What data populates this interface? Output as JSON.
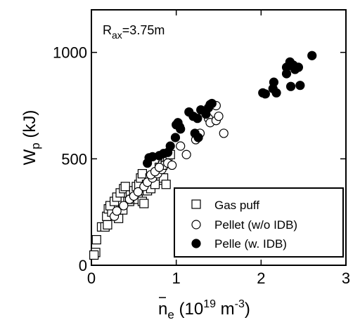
{
  "chart_data": {
    "type": "scatter",
    "annotation": {
      "main": "R",
      "sub": "ax",
      "rest": "=3.75m"
    },
    "xlabel": {
      "bar_symbol": "n",
      "sub": "e",
      "unit_open": " (10",
      "sup1": "19",
      "unit_mid": " m",
      "sup2": "-3",
      "unit_close": ")"
    },
    "ylabel": {
      "main": "W",
      "sub": "p",
      "rest": " (kJ)"
    },
    "xlim": [
      0,
      3
    ],
    "ylim": [
      0,
      1200
    ],
    "x_ticks": [
      0,
      1,
      2,
      3
    ],
    "x_tick_labels": [
      "0",
      "1",
      "2",
      "3"
    ],
    "y_ticks": [
      0,
      500,
      1000
    ],
    "y_tick_labels": [
      "0",
      "500",
      "1000"
    ],
    "grid": false,
    "legend_position": "bottom-right",
    "series": [
      {
        "name": "Gas puff",
        "marker": "open-square",
        "points": [
          [
            0.06,
            120
          ],
          [
            0.05,
            60
          ],
          [
            0.03,
            48
          ],
          [
            0.12,
            180
          ],
          [
            0.16,
            180
          ],
          [
            0.19,
            190
          ],
          [
            0.18,
            230
          ],
          [
            0.2,
            265
          ],
          [
            0.24,
            250
          ],
          [
            0.22,
            280
          ],
          [
            0.27,
            300
          ],
          [
            0.3,
            320
          ],
          [
            0.34,
            340
          ],
          [
            0.38,
            360
          ],
          [
            0.4,
            370
          ],
          [
            0.32,
            220
          ],
          [
            0.37,
            260
          ],
          [
            0.43,
            300
          ],
          [
            0.46,
            330
          ],
          [
            0.5,
            350
          ],
          [
            0.53,
            370
          ],
          [
            0.56,
            380
          ],
          [
            0.58,
            410
          ],
          [
            0.6,
            430
          ],
          [
            0.62,
            350
          ],
          [
            0.65,
            380
          ],
          [
            0.69,
            410
          ],
          [
            0.73,
            400
          ],
          [
            0.78,
            410
          ],
          [
            0.82,
            400
          ],
          [
            0.85,
            410
          ],
          [
            0.88,
            380
          ],
          [
            0.45,
            300
          ],
          [
            0.48,
            310
          ],
          [
            0.52,
            320
          ],
          [
            0.55,
            310
          ],
          [
            0.6,
            300
          ],
          [
            0.62,
            290
          ],
          [
            0.66,
            350
          ],
          [
            0.7,
            360
          ],
          [
            0.75,
            380
          ],
          [
            0.8,
            460
          ],
          [
            0.84,
            470
          ],
          [
            0.88,
            490
          ],
          [
            0.9,
            510
          ],
          [
            0.93,
            520
          ]
        ]
      },
      {
        "name": "Pellet (w/o IDB)",
        "marker": "open-circle",
        "points": [
          [
            0.27,
            230
          ],
          [
            0.3,
            255
          ],
          [
            0.38,
            280
          ],
          [
            0.45,
            310
          ],
          [
            0.5,
            325
          ],
          [
            0.55,
            345
          ],
          [
            0.62,
            370
          ],
          [
            0.66,
            390
          ],
          [
            0.72,
            410
          ],
          [
            0.78,
            430
          ],
          [
            0.83,
            450
          ],
          [
            0.86,
            470
          ],
          [
            0.9,
            480
          ],
          [
            0.95,
            470
          ],
          [
            1.05,
            560
          ],
          [
            1.12,
            520
          ],
          [
            1.23,
            590
          ],
          [
            1.28,
            620
          ],
          [
            1.38,
            690
          ],
          [
            1.4,
            670
          ],
          [
            1.47,
            680
          ],
          [
            1.47,
            750
          ],
          [
            1.5,
            700
          ],
          [
            1.56,
            620
          ],
          [
            0.7,
            425
          ],
          [
            0.75,
            440
          ],
          [
            0.8,
            460
          ]
        ]
      },
      {
        "name": "Pelle (w. IDB)",
        "marker": "filled-circle",
        "points": [
          [
            0.66,
            480
          ],
          [
            0.68,
            505
          ],
          [
            0.72,
            510
          ],
          [
            0.8,
            515
          ],
          [
            0.85,
            525
          ],
          [
            0.9,
            530
          ],
          [
            0.93,
            560
          ],
          [
            0.99,
            600
          ],
          [
            1.0,
            660
          ],
          [
            1.02,
            670
          ],
          [
            1.04,
            650
          ],
          [
            1.05,
            640
          ],
          [
            1.15,
            720
          ],
          [
            1.2,
            700
          ],
          [
            1.22,
            620
          ],
          [
            1.26,
            600
          ],
          [
            1.25,
            690
          ],
          [
            1.29,
            730
          ],
          [
            1.35,
            710
          ],
          [
            1.38,
            740
          ],
          [
            1.4,
            755
          ],
          [
            1.42,
            760
          ],
          [
            2.02,
            810
          ],
          [
            2.05,
            805
          ],
          [
            2.15,
            860
          ],
          [
            2.14,
            830
          ],
          [
            2.18,
            810
          ],
          [
            2.3,
            900
          ],
          [
            2.3,
            930
          ],
          [
            2.34,
            955
          ],
          [
            2.38,
            940
          ],
          [
            2.4,
            920
          ],
          [
            2.44,
            930
          ],
          [
            2.46,
            845
          ],
          [
            2.35,
            840
          ],
          [
            2.6,
            985
          ]
        ]
      }
    ]
  }
}
